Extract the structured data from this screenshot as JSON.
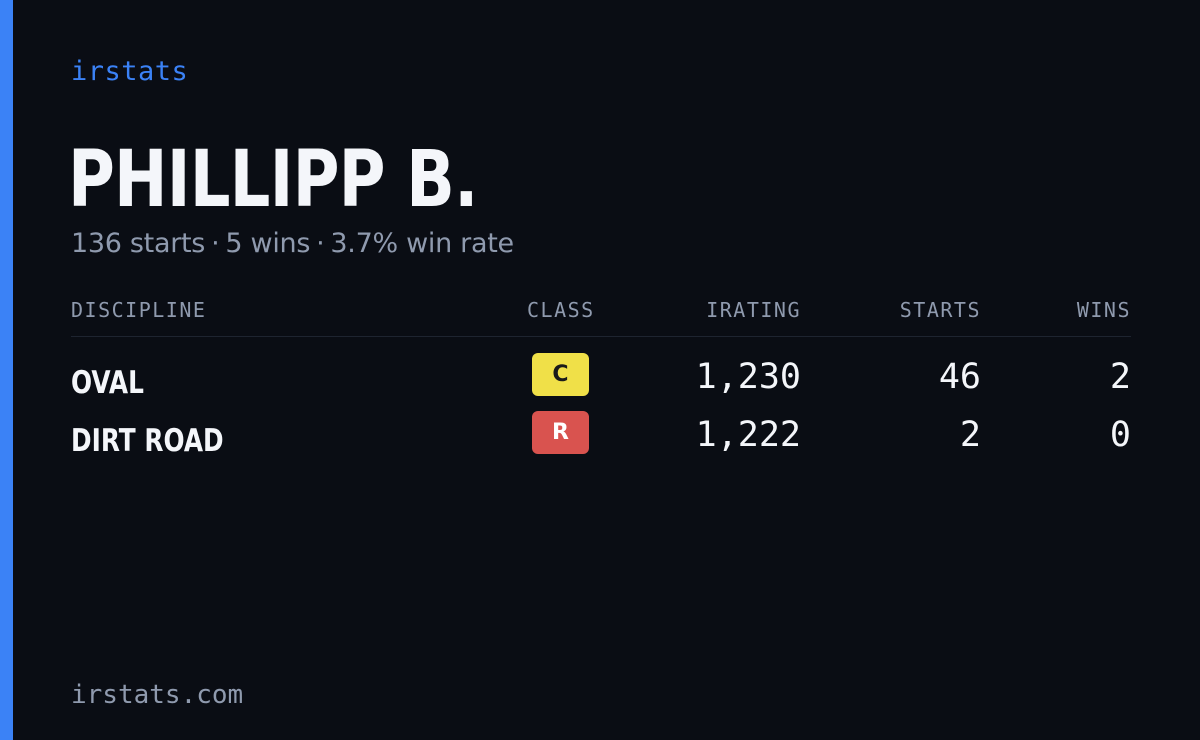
{
  "brand": {
    "name": "irstats",
    "accent_color": "#3b82f6"
  },
  "player": {
    "name": "PHILLIPP B.",
    "summary": {
      "starts": "136 starts",
      "wins": "5 wins",
      "win_rate": "3.7% win rate",
      "separator": "·"
    }
  },
  "table": {
    "headers": {
      "discipline": "DISCIPLINE",
      "class": "CLASS",
      "irating": "IRATING",
      "starts": "STARTS",
      "wins": "WINS"
    },
    "rows": [
      {
        "discipline": "OVAL",
        "class": "C",
        "class_color": "#f0e048",
        "class_text_color": "#1a1a1a",
        "irating": "1,230",
        "starts": "46",
        "wins": "2"
      },
      {
        "discipline": "DIRT ROAD",
        "class": "R",
        "class_color": "#d9534f",
        "class_text_color": "#ffffff",
        "irating": "1,222",
        "starts": "2",
        "wins": "0"
      }
    ]
  },
  "footer": {
    "url": "irstats.com"
  },
  "colors": {
    "background": "#0a0d14",
    "text_primary": "#f4f6fa",
    "text_muted": "#8f9aae"
  }
}
